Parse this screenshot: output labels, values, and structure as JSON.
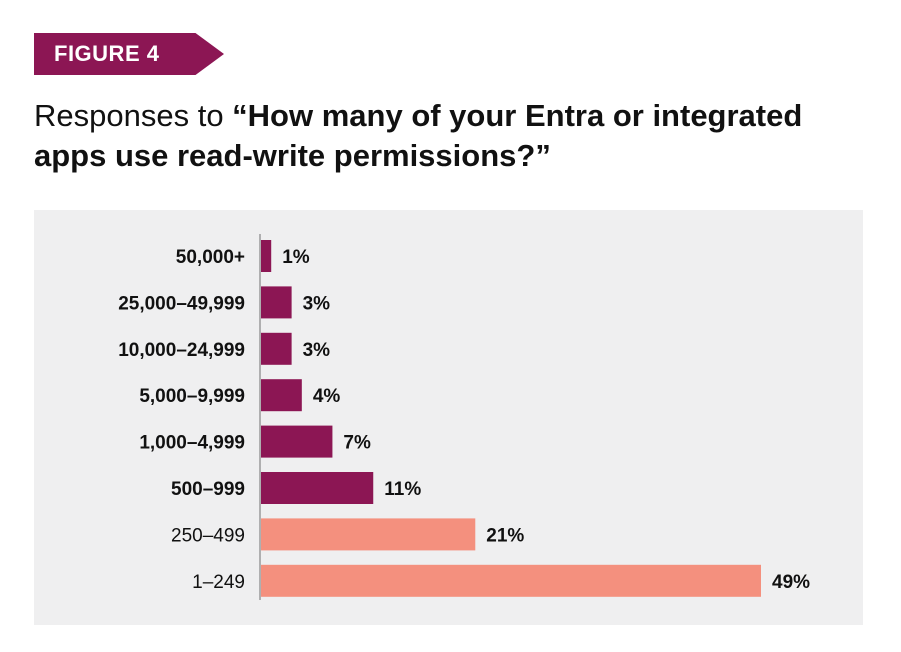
{
  "figure_label": "FIGURE 4",
  "title": {
    "prefix": "Responses to ",
    "question": "“How many of your Entra or integrated apps use read-write permissions?”"
  },
  "colors": {
    "accent": "#8c1654",
    "highlight": "#f4907e",
    "panel": "#efeff0"
  },
  "chart_data": {
    "type": "bar",
    "orientation": "horizontal",
    "title": "Responses to “How many of your Entra or integrated apps use read-write permissions?”",
    "xlabel": "",
    "ylabel": "",
    "xlim": [
      0,
      49
    ],
    "grid": false,
    "legend": "none",
    "categories": [
      "50,000+",
      "25,000–49,999",
      "10,000–24,999",
      "5,000–9,999",
      "1,000–4,999",
      "500–999",
      "250–499",
      "1–249"
    ],
    "values": [
      1,
      3,
      3,
      4,
      7,
      11,
      21,
      49
    ],
    "value_labels": [
      "1%",
      "3%",
      "3%",
      "4%",
      "7%",
      "11%",
      "21%",
      "49%"
    ],
    "category_bold": [
      true,
      true,
      true,
      true,
      true,
      true,
      false,
      false
    ],
    "bar_colors": [
      "#8c1654",
      "#8c1654",
      "#8c1654",
      "#8c1654",
      "#8c1654",
      "#8c1654",
      "#f4907e",
      "#f4907e"
    ]
  }
}
